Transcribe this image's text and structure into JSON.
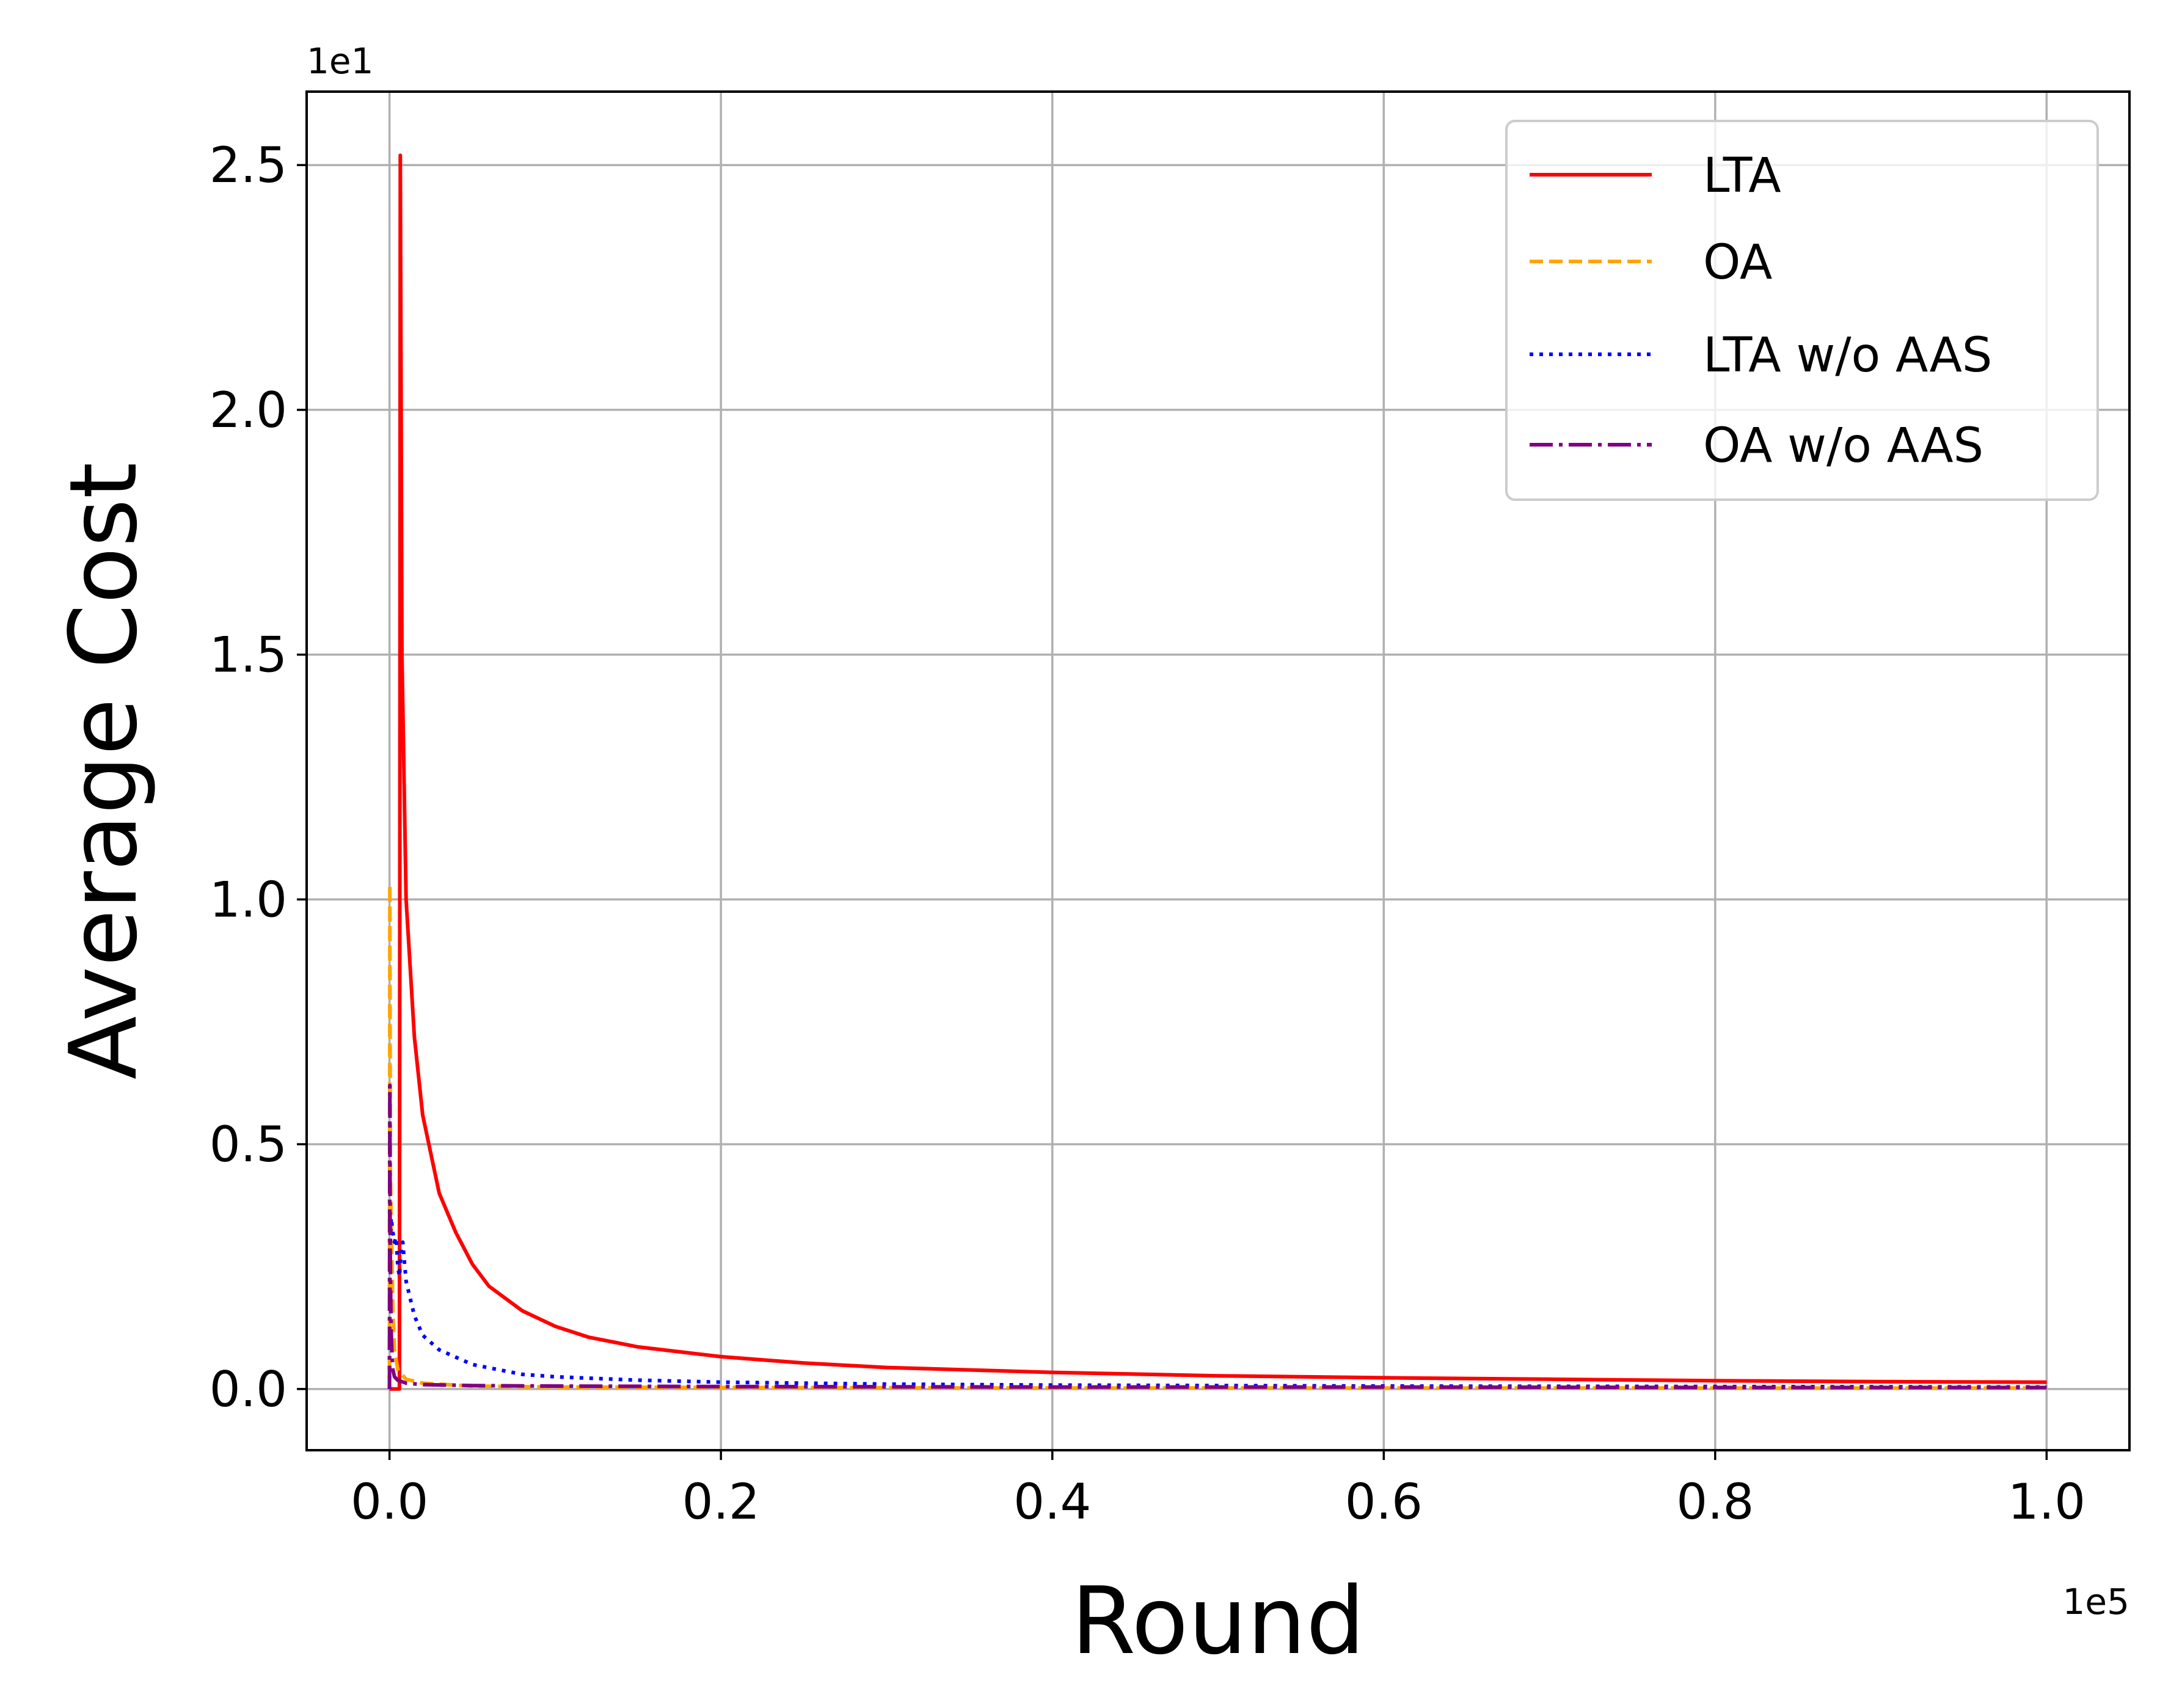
{
  "chart_data": {
    "type": "line",
    "title": "",
    "xlabel": "Round",
    "ylabel": "Average Cost",
    "x_offset_label": "1e5",
    "y_offset_label": "1e1",
    "xlim": [
      -0.05,
      1.05
    ],
    "ylim": [
      -0.125,
      2.65
    ],
    "xticks": [
      0.0,
      0.2,
      0.4,
      0.6,
      0.8,
      1.0
    ],
    "xtick_labels": [
      "0.0",
      "0.2",
      "0.4",
      "0.6",
      "0.8",
      "1.0"
    ],
    "yticks": [
      0.0,
      0.5,
      1.0,
      1.5,
      2.0,
      2.5
    ],
    "ytick_labels": [
      "0.0",
      "0.5",
      "1.0",
      "1.5",
      "2.0",
      "2.5"
    ],
    "grid": true,
    "legend_position": "top-right",
    "series": [
      {
        "name": "LTA",
        "color": "#ff0000",
        "style": "solid",
        "x": [
          0.0,
          0.0045,
          0.006,
          0.0065,
          0.0075,
          0.01,
          0.015,
          0.02,
          0.03,
          0.04,
          0.05,
          0.06,
          0.08,
          0.1,
          0.12,
          0.15,
          0.2,
          0.25,
          0.3,
          0.4,
          0.5,
          0.6,
          0.7,
          0.8,
          0.9,
          1.0
        ],
        "y": [
          0.0,
          0.0,
          0.0,
          2.52,
          1.5,
          1.0,
          0.72,
          0.56,
          0.4,
          0.32,
          0.255,
          0.21,
          0.16,
          0.128,
          0.106,
          0.086,
          0.066,
          0.053,
          0.044,
          0.034,
          0.027,
          0.023,
          0.02,
          0.017,
          0.015,
          0.014
        ]
      },
      {
        "name": "OA",
        "color": "#ffa500",
        "style": "dashed",
        "x": [
          0.0,
          0.0002,
          0.0005,
          0.001,
          0.002,
          0.003,
          0.005,
          0.01,
          0.02,
          0.05,
          0.1,
          0.2,
          0.4,
          0.6,
          0.8,
          1.0
        ],
        "y": [
          0.0,
          1.03,
          0.45,
          0.35,
          0.17,
          0.08,
          0.04,
          0.02,
          0.012,
          0.006,
          0.004,
          0.003,
          0.002,
          0.002,
          0.002,
          0.002
        ]
      },
      {
        "name": "LTA w/o AAS",
        "color": "#0000ff",
        "style": "dotted",
        "x": [
          0.0,
          0.0003,
          0.001,
          0.002,
          0.003,
          0.004,
          0.005,
          0.006,
          0.007,
          0.008,
          0.01,
          0.015,
          0.02,
          0.03,
          0.05,
          0.08,
          0.1,
          0.15,
          0.2,
          0.3,
          0.4,
          0.6,
          0.8,
          1.0
        ],
        "y": [
          0.0,
          0.28,
          0.35,
          0.32,
          0.3,
          0.31,
          0.25,
          0.23,
          0.28,
          0.3,
          0.22,
          0.15,
          0.11,
          0.08,
          0.05,
          0.03,
          0.025,
          0.018,
          0.014,
          0.01,
          0.008,
          0.006,
          0.005,
          0.004
        ]
      },
      {
        "name": "OA w/o AAS",
        "color": "#800080",
        "style": "dashdot",
        "x": [
          0.0,
          0.0002,
          0.0004,
          0.0007,
          0.001,
          0.0015,
          0.002,
          0.003,
          0.005,
          0.01,
          0.02,
          0.05,
          0.1,
          0.2,
          0.4,
          0.6,
          0.8,
          1.0
        ],
        "y": [
          0.0,
          0.62,
          0.3,
          0.2,
          0.12,
          0.07,
          0.04,
          0.025,
          0.018,
          0.012,
          0.009,
          0.007,
          0.006,
          0.005,
          0.004,
          0.004,
          0.003,
          0.003
        ]
      }
    ]
  }
}
